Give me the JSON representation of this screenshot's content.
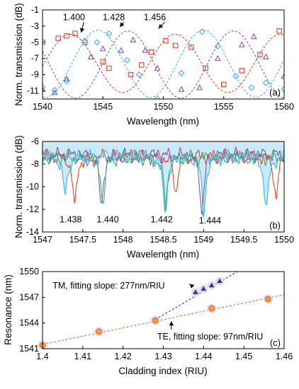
{
  "chart_data": [
    {
      "id": "a",
      "type": "scatter",
      "panel_label": "(a)",
      "xlabel": "Wavelength (nm)",
      "ylabel": "Norm. transmission (dB)",
      "xlim": [
        1540,
        1560
      ],
      "ylim": [
        -12,
        -1
      ],
      "xticks": [
        1540,
        1545,
        1550,
        1555,
        1560
      ],
      "yticks": [
        -1,
        -3,
        -5,
        -7,
        -9,
        -11
      ],
      "grid": false,
      "colors": {
        "s1400": "#e0452b",
        "s1428": "#35b6e6",
        "s1456": "#7b56b4"
      },
      "series": [
        {
          "label": "1.400",
          "marker": "square",
          "x": [
            1540.0,
            1541.3,
            1542.0,
            1542.7,
            1543.5,
            1545.0,
            1545.5,
            1547.3,
            1548.2,
            1549.0,
            1550.2,
            1551.0,
            1552.3,
            1553.5,
            1555.0,
            1556.5,
            1558.0,
            1559.6
          ],
          "y": [
            -5.0,
            -4.5,
            -4.2,
            -3.9,
            -5.0,
            -7.4,
            -8.2,
            -9.0,
            -7.8,
            -6.2,
            -4.8,
            -5.4,
            -5.6,
            -8.2,
            -10.2,
            -8.5,
            -6.5,
            -3.6
          ],
          "fit_center": 1542.3,
          "fit_min": -4.0,
          "fit_max": -11.2,
          "fit_period": 8.7
        },
        {
          "label": "1.428",
          "marker": "diamond",
          "x": [
            1540.0,
            1541.0,
            1542.0,
            1543.5,
            1544.5,
            1545.5,
            1547.0,
            1548.0,
            1549.5,
            1551.5,
            1553.2,
            1554.5,
            1556.0,
            1557.3,
            1558.5,
            1560.0
          ],
          "y": [
            -10.5,
            -10.9,
            -9.8,
            -4.8,
            -5.0,
            -3.9,
            -7.2,
            -9.0,
            -12.0,
            -8.8,
            -3.7,
            -5.5,
            -9.2,
            -10.6,
            -10.0,
            -10.8
          ],
          "fit_center": 1544.6,
          "fit_min": -3.5,
          "fit_max": -11.8,
          "fit_period": 8.7
        },
        {
          "label": "1.456",
          "marker": "triangle",
          "x": [
            1540.0,
            1541.0,
            1542.0,
            1544.0,
            1545.0,
            1546.5,
            1547.5,
            1548.5,
            1549.5,
            1551.5,
            1553.0,
            1554.5,
            1556.5,
            1557.5,
            1558.5,
            1560.0
          ],
          "y": [
            -10.8,
            -11.2,
            -9.5,
            -6.8,
            -5.8,
            -6.0,
            -4.7,
            -6.0,
            -8.2,
            -10.8,
            -10.6,
            -7.0,
            -5.3,
            -4.3,
            -6.8,
            -9.2
          ],
          "fit_center": 1547.1,
          "fit_min": -3.6,
          "fit_max": -11.9,
          "fit_period": 8.7
        }
      ],
      "annotations": [
        {
          "text": "1.400",
          "x": 1542.6,
          "y": -1.9,
          "arrow_to": [
            1543.2,
            -3.8
          ]
        },
        {
          "text": "1.428",
          "x": 1545.9,
          "y": -1.9,
          "arrow_to": [
            1546.4,
            -3.1
          ]
        },
        {
          "text": "1.456",
          "x": 1549.3,
          "y": -1.9,
          "arrow_to": [
            1549.6,
            -3.3
          ]
        }
      ]
    },
    {
      "id": "b",
      "type": "line",
      "panel_label": "(b)",
      "xlabel": "Wavelength (nm)",
      "ylabel": "Norm. transmission (dB)",
      "xlim": [
        1547,
        1550
      ],
      "ylim": [
        -14,
        -6
      ],
      "xticks": [
        1547,
        1547.5,
        1548,
        1548.5,
        1549,
        1549.5,
        1550
      ],
      "yticks": [
        -6,
        -8,
        -10,
        -12,
        -14
      ],
      "grid": false,
      "colors": {
        "s1438": "#e0452b",
        "s1440": "#7b56b4",
        "s1442": "#3aa86a",
        "s1444": "#35b6e6",
        "fill": "#bfe6f5"
      },
      "series": [
        {
          "label": "1.438",
          "baseline": -7.3,
          "dips": [
            [
              1547.4,
              -11.8,
              0.03
            ],
            [
              1548.65,
              -10.6,
              0.03
            ],
            [
              1549.9,
              -11.0,
              0.03
            ]
          ]
        },
        {
          "label": "1.440",
          "baseline": -7.2,
          "dips": [
            [
              1547.73,
              -11.8,
              0.03
            ],
            [
              1548.98,
              -12.2,
              0.03
            ]
          ]
        },
        {
          "label": "1.442",
          "baseline": -7.4,
          "dips": [
            [
              1547.75,
              -11.3,
              0.03
            ],
            [
              1548.53,
              -11.9,
              0.03
            ]
          ]
        },
        {
          "label": "1.444",
          "baseline": -7.3,
          "dips": [
            [
              1547.28,
              -10.7,
              0.035
            ],
            [
              1548.52,
              -11.6,
              0.035
            ],
            [
              1549.0,
              -12.5,
              0.03
            ],
            [
              1549.78,
              -11.8,
              0.035
            ]
          ]
        }
      ],
      "annotations": [
        {
          "text": "1.438",
          "x": 1547.35,
          "y": -12.9
        },
        {
          "text": "1.440",
          "x": 1547.81,
          "y": -12.9
        },
        {
          "text": "1.442",
          "x": 1548.48,
          "y": -12.9
        },
        {
          "text": "1.444",
          "x": 1549.08,
          "y": -13.0
        }
      ]
    },
    {
      "id": "c",
      "type": "scatter",
      "panel_label": "(c)",
      "xlabel": "Cladding index (RIU)",
      "ylabel": "Resonance (nm)",
      "xlim": [
        1.4,
        1.46
      ],
      "ylim": [
        1541,
        1550
      ],
      "xticks": [
        1.4,
        1.41,
        1.42,
        1.43,
        1.44,
        1.45,
        1.46
      ],
      "yticks": [
        1541,
        1544,
        1547,
        1550
      ],
      "grid": false,
      "colors": {
        "te": "#e66a22",
        "te_fill": "#f2a23a",
        "tm": "#1f3f8a",
        "halo": "#e7d7ef"
      },
      "series": [
        {
          "name": "TE",
          "x": [
            1.4,
            1.414,
            1.428,
            1.442,
            1.456
          ],
          "y": [
            1541.4,
            1543.0,
            1544.3,
            1545.7,
            1546.8
          ],
          "fit": {
            "x": [
              1.4,
              1.46
            ],
            "y": [
              1541.5,
              1547.3
            ]
          }
        },
        {
          "name": "TM",
          "x": [
            1.438,
            1.44,
            1.442,
            1.444
          ],
          "y": [
            1547.6,
            1548.0,
            1548.4,
            1548.9
          ],
          "fit": {
            "x": [
              1.428,
              1.46
            ],
            "y": [
              1544.4,
              1553.2
            ]
          }
        }
      ],
      "annotations": [
        {
          "text": "TM, fitting slope: 277nm/RIU",
          "x": 1.4025,
          "y": 1548.35,
          "arrow_to": [
            1.4365,
            1548.55
          ]
        },
        {
          "text": "TE, fitting slope: 97nm/RIU",
          "x": 1.4285,
          "y": 1542.4,
          "arrow_to": [
            1.432,
            1544.2
          ]
        }
      ]
    }
  ]
}
